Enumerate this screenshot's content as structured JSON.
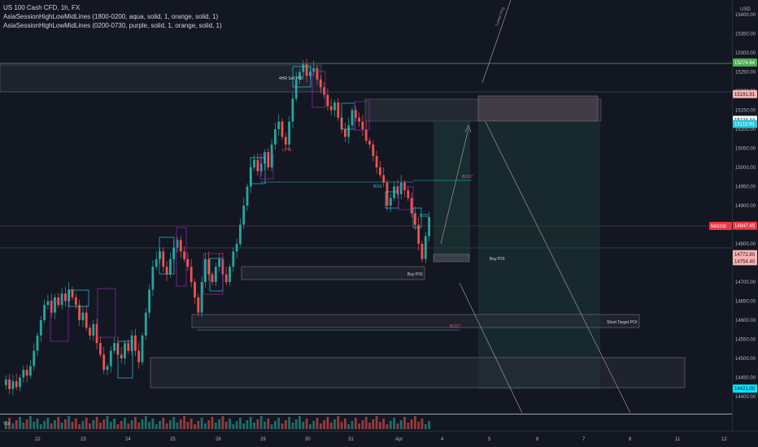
{
  "symbol_title": "US 100 Cash CFD, 1h, FX",
  "indicators": [
    "AsiaSessionHighLowMidLines (1800-0200, aqua, solid, 1, orange, solid, 1)",
    "AsiaSessionHighLowMidLines (0200-0730, purple, solid, 1, orange, solid, 1)"
  ],
  "currency_label": "USD",
  "volume_label": "Vol",
  "price_axis": {
    "ticks": [
      "15400.00",
      "15350.00",
      "15300.00",
      "15250.00",
      "15200.00",
      "15150.00",
      "15100.00",
      "15050.00",
      "15000.00",
      "14950.00",
      "14900.00",
      "14850.00",
      "14800.00",
      "14750.00",
      "14700.00",
      "14650.00",
      "14600.00",
      "14550.00",
      "14500.00",
      "14450.00",
      "14400.00"
    ],
    "badges": [
      {
        "text": "15274.64",
        "color": "#4caf50",
        "value": 15274.64
      },
      {
        "text": "15191.91",
        "color": "#f7b2b2",
        "value": 15191.91
      },
      {
        "text": "15124.44",
        "color": "#ffffff",
        "value": 15124.44
      },
      {
        "text": "15113.93",
        "color": "#26c6da",
        "value": 15113.93
      },
      {
        "text": "14847.45",
        "color": "#f23645",
        "value": 14847.45
      },
      {
        "text": "14772.80",
        "color": "#f7b2b2",
        "value": 14772.8
      },
      {
        "text": "14754.40",
        "color": "#f7b2b2",
        "value": 14754.4
      },
      {
        "text": "14421.00",
        "color": "#00e5ff",
        "value": 14421.0
      }
    ],
    "symbol_tag": "NAS100"
  },
  "time_axis": {
    "labels": [
      "22",
      "23",
      "24",
      "25",
      "28",
      "29",
      "30",
      "31",
      "Apr",
      "4",
      "5",
      "6",
      "7",
      "8",
      "11",
      "12"
    ]
  },
  "annotations": {
    "four_hr_sell_poi": "4HR Sell POI",
    "lpt": "LPTe",
    "bos1": "BOS",
    "bos2": "BOS",
    "bos3": "BOS?",
    "bos4": "BOS?",
    "buy_poi_1": "Buy POI",
    "buy_poi_2": "Buy POI",
    "short_target_poi": "Short Target POI",
    "lower_proj": "Lower Proj."
  },
  "colors": {
    "background": "#131722",
    "up_candle": "#26a69a",
    "down_candle": "#ef5350",
    "green_line": "#4caf50",
    "aqua_box": "#26c6da",
    "purple_box": "#9c27b0"
  }
}
